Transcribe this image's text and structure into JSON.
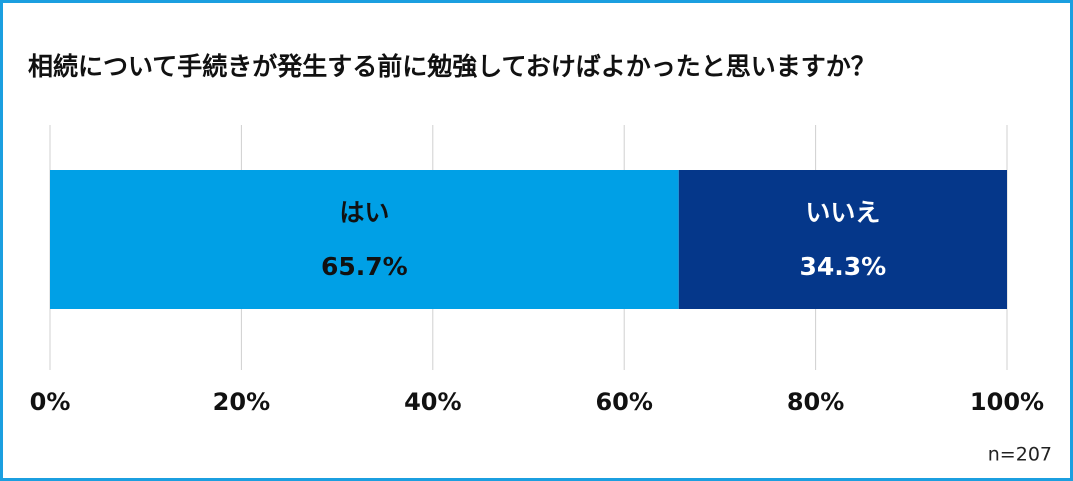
{
  "chart_data": {
    "type": "bar",
    "orientation": "horizontal",
    "stacked": true,
    "title": "相続について手続きが発生する前に勉強しておけばよかったと思いますか？",
    "series": [
      {
        "name": "はい",
        "color": "#00a0e6",
        "values": [
          65.7
        ],
        "value_labels": [
          "65.7%"
        ]
      },
      {
        "name": "いいえ",
        "color": "#05378a",
        "values": [
          34.3
        ],
        "value_labels": [
          "34.3%"
        ]
      }
    ],
    "xlim": [
      0,
      100
    ],
    "xticks": [
      {
        "value": 0,
        "label": "0%"
      },
      {
        "value": 20,
        "label": "20%"
      },
      {
        "value": 40,
        "label": "40%"
      },
      {
        "value": 60,
        "label": "60%"
      },
      {
        "value": 80,
        "label": "80%"
      },
      {
        "value": 100,
        "label": "100%"
      }
    ],
    "grid": true,
    "note": "n=207"
  }
}
